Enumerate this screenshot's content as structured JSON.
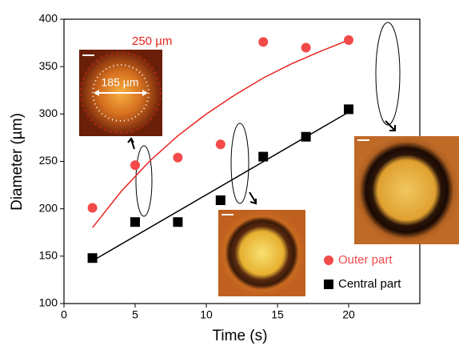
{
  "chart_data": {
    "type": "scatter",
    "x_label": "Time (s)",
    "y_label": "Diameter (µm)",
    "xlim": [
      0,
      25
    ],
    "ylim": [
      100,
      400
    ],
    "xticks": [
      0,
      5,
      10,
      15,
      20
    ],
    "yticks": [
      100,
      150,
      200,
      250,
      300,
      350,
      400
    ],
    "series": [
      {
        "name": "Outer part",
        "color": "#f24a4a",
        "marker": "circle",
        "x": [
          2,
          5,
          8,
          11,
          14,
          17,
          20
        ],
        "values": [
          201,
          246,
          254,
          268,
          376,
          370,
          378
        ]
      },
      {
        "name": "Central part",
        "color": "#000000",
        "marker": "square",
        "x": [
          2,
          5,
          8,
          11,
          14,
          17,
          20
        ],
        "values": [
          148,
          186,
          186,
          209,
          255,
          276,
          305
        ]
      }
    ],
    "fits": [
      {
        "color": "#e8231f",
        "x": [
          2,
          4,
          6,
          8,
          10,
          12,
          14,
          16,
          18,
          20
        ],
        "values": [
          180,
          218,
          250,
          277,
          300,
          320,
          338,
          353,
          366,
          378
        ]
      },
      {
        "color": "#000000",
        "x": [
          2,
          20
        ],
        "values": [
          145,
          302
        ]
      }
    ],
    "annotations": [
      "250 µm",
      "185 µm"
    ]
  }
}
